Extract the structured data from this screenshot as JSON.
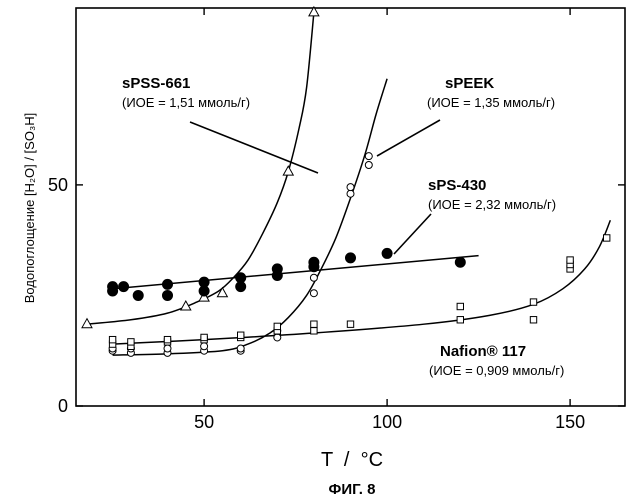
{
  "chart_data": {
    "type": "scatter",
    "xlabel": "T  /  °C",
    "ylabel": "Водопоглощение [H₂O] / [SO₃H]",
    "caption": "ФИГ. 8",
    "xlim": [
      15,
      165
    ],
    "ylim": [
      0,
      90
    ],
    "xticks": [
      50,
      100,
      150
    ],
    "yticks": [
      0,
      50
    ],
    "grid": false,
    "series": [
      {
        "name": "sPSS-661",
        "ioe": "(ИОЕ = 1,51 ммоль/г)",
        "marker": "open-triangle",
        "points": [
          [
            18,
            18.5
          ],
          [
            45,
            22.5
          ],
          [
            50,
            24.5
          ],
          [
            55,
            25.5
          ],
          [
            73,
            53
          ],
          [
            80,
            89
          ]
        ],
        "curve": [
          [
            18,
            18.5
          ],
          [
            30,
            19.5
          ],
          [
            40,
            21
          ],
          [
            48,
            23.5
          ],
          [
            54,
            26
          ],
          [
            58,
            29
          ],
          [
            62,
            33
          ],
          [
            66,
            39
          ],
          [
            70,
            46
          ],
          [
            73,
            53
          ],
          [
            76,
            63
          ],
          [
            78,
            72
          ],
          [
            80,
            89
          ]
        ]
      },
      {
        "name": "sPEEK",
        "ioe": "(ИОЕ = 1,35 ммоль/г)",
        "marker": "open-circle",
        "points": [
          [
            25,
            12.5
          ],
          [
            25,
            13
          ],
          [
            30,
            12
          ],
          [
            30,
            13
          ],
          [
            40,
            12
          ],
          [
            40,
            13
          ],
          [
            50,
            12.5
          ],
          [
            50,
            13.5
          ],
          [
            60,
            12.5
          ],
          [
            60,
            13
          ],
          [
            70,
            15.5
          ],
          [
            70,
            17
          ],
          [
            80,
            25.5
          ],
          [
            80,
            29
          ],
          [
            80,
            31.5
          ],
          [
            90,
            48
          ],
          [
            90,
            49.5
          ],
          [
            95,
            54.5
          ],
          [
            95,
            56.5
          ]
        ],
        "curve": [
          [
            25,
            11.5
          ],
          [
            40,
            11.8
          ],
          [
            55,
            12.5
          ],
          [
            62,
            14
          ],
          [
            68,
            16.5
          ],
          [
            73,
            20
          ],
          [
            78,
            25
          ],
          [
            82,
            31
          ],
          [
            86,
            38
          ],
          [
            90,
            47
          ],
          [
            94,
            57
          ],
          [
            97,
            66
          ],
          [
            100,
            74
          ]
        ]
      },
      {
        "name": "sPS-430",
        "ioe": "(ИОЕ = 2,32 ммоль/г)",
        "marker": "filled-circle",
        "points": [
          [
            25,
            26
          ],
          [
            25,
            27
          ],
          [
            28,
            27
          ],
          [
            32,
            25
          ],
          [
            40,
            25
          ],
          [
            40,
            27.5
          ],
          [
            50,
            26
          ],
          [
            50,
            28
          ],
          [
            60,
            27
          ],
          [
            60,
            29
          ],
          [
            70,
            29.5
          ],
          [
            70,
            31
          ],
          [
            80,
            31.5
          ],
          [
            80,
            32.5
          ],
          [
            90,
            33.5
          ],
          [
            100,
            34.5
          ],
          [
            120,
            32.5
          ]
        ],
        "curve": [
          [
            25,
            26.5
          ],
          [
            125,
            34
          ]
        ]
      },
      {
        "name": "Nafion® 117",
        "ioe": "(ИОЕ = 0,909 ммоль/г)",
        "marker": "open-square",
        "points": [
          [
            25,
            14
          ],
          [
            25,
            15
          ],
          [
            30,
            13.5
          ],
          [
            30,
            14.5
          ],
          [
            40,
            14.5
          ],
          [
            40,
            15
          ],
          [
            50,
            15
          ],
          [
            50,
            15.5
          ],
          [
            60,
            15.5
          ],
          [
            60,
            16
          ],
          [
            70,
            17
          ],
          [
            70,
            18
          ],
          [
            80,
            17
          ],
          [
            80,
            18.5
          ],
          [
            90,
            18.5
          ],
          [
            120,
            19.5
          ],
          [
            120,
            22.5
          ],
          [
            140,
            19.5
          ],
          [
            140,
            23.5
          ],
          [
            150,
            31
          ],
          [
            150,
            32
          ],
          [
            150,
            33
          ],
          [
            160,
            38
          ]
        ],
        "curve": [
          [
            25,
            14
          ],
          [
            50,
            15
          ],
          [
            80,
            16.5
          ],
          [
            110,
            18.5
          ],
          [
            128,
            20.5
          ],
          [
            140,
            23
          ],
          [
            148,
            26.5
          ],
          [
            154,
            31
          ],
          [
            158,
            36
          ],
          [
            161,
            42
          ]
        ]
      }
    ]
  }
}
